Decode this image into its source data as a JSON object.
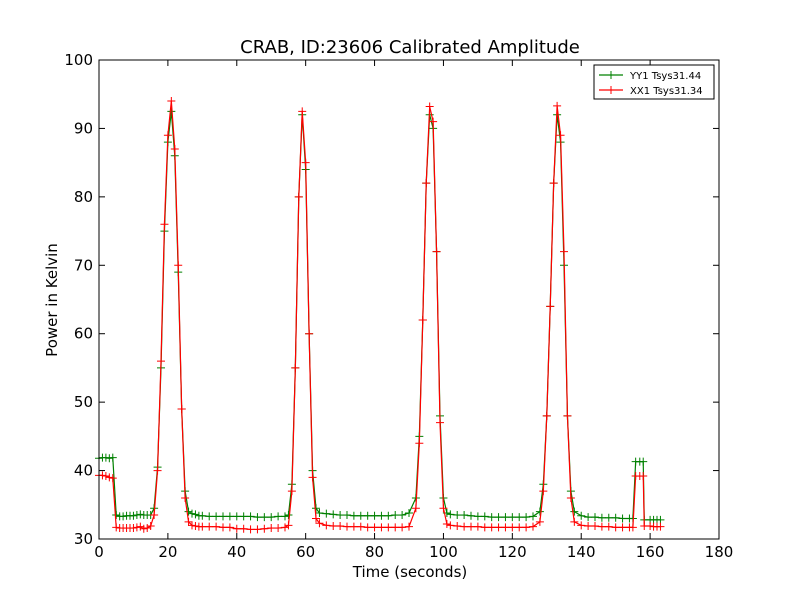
{
  "chart_data": {
    "type": "line",
    "title": "CRAB, ID:23606 Calibrated Amplitude",
    "xlabel": "Time (seconds)",
    "ylabel": "Power in Kelvin",
    "xlim": [
      0,
      180
    ],
    "ylim": [
      30,
      100
    ],
    "xticks": [
      0,
      20,
      40,
      60,
      80,
      100,
      120,
      140,
      160,
      180
    ],
    "yticks": [
      30,
      40,
      50,
      60,
      70,
      80,
      90,
      100
    ],
    "grid": false,
    "legend_position": "top-right",
    "series": [
      {
        "name": "YY1 Tsys31.44",
        "color": "#008000",
        "marker": "+",
        "points": [
          [
            0,
            41.8
          ],
          [
            1,
            41.9
          ],
          [
            2,
            41.9
          ],
          [
            3,
            41.8
          ],
          [
            4,
            41.9
          ],
          [
            5,
            33.5
          ],
          [
            6,
            33.3
          ],
          [
            7,
            33.3
          ],
          [
            8,
            33.4
          ],
          [
            9,
            33.4
          ],
          [
            10,
            33.4
          ],
          [
            11,
            33.5
          ],
          [
            12,
            33.6
          ],
          [
            13,
            33.5
          ],
          [
            14,
            33.5
          ],
          [
            15,
            33.5
          ],
          [
            16,
            34.5
          ],
          [
            17,
            40.5
          ],
          [
            18,
            55
          ],
          [
            19,
            75
          ],
          [
            20,
            88
          ],
          [
            21,
            92.5
          ],
          [
            22,
            86
          ],
          [
            23,
            69
          ],
          [
            24,
            49
          ],
          [
            25,
            37
          ],
          [
            26,
            34
          ],
          [
            27,
            33.7
          ],
          [
            28,
            33.6
          ],
          [
            29,
            33.4
          ],
          [
            30,
            33.4
          ],
          [
            32,
            33.3
          ],
          [
            34,
            33.3
          ],
          [
            36,
            33.3
          ],
          [
            38,
            33.3
          ],
          [
            40,
            33.3
          ],
          [
            42,
            33.3
          ],
          [
            44,
            33.3
          ],
          [
            46,
            33.2
          ],
          [
            48,
            33.2
          ],
          [
            50,
            33.2
          ],
          [
            52,
            33.3
          ],
          [
            54,
            33.3
          ],
          [
            55,
            33.5
          ],
          [
            56,
            38
          ],
          [
            57,
            55
          ],
          [
            58,
            80
          ],
          [
            59,
            92
          ],
          [
            60,
            84
          ],
          [
            61,
            60
          ],
          [
            62,
            40
          ],
          [
            63,
            34.5
          ],
          [
            64,
            33.8
          ],
          [
            66,
            33.7
          ],
          [
            68,
            33.6
          ],
          [
            70,
            33.5
          ],
          [
            72,
            33.5
          ],
          [
            74,
            33.4
          ],
          [
            76,
            33.4
          ],
          [
            78,
            33.4
          ],
          [
            80,
            33.4
          ],
          [
            82,
            33.4
          ],
          [
            84,
            33.4
          ],
          [
            86,
            33.5
          ],
          [
            88,
            33.5
          ],
          [
            90,
            33.8
          ],
          [
            92,
            36
          ],
          [
            93,
            45
          ],
          [
            94,
            62
          ],
          [
            95,
            82
          ],
          [
            96,
            92
          ],
          [
            97,
            90
          ],
          [
            98,
            72
          ],
          [
            99,
            48
          ],
          [
            100,
            36
          ],
          [
            101,
            33.8
          ],
          [
            102,
            33.6
          ],
          [
            104,
            33.5
          ],
          [
            106,
            33.5
          ],
          [
            108,
            33.4
          ],
          [
            110,
            33.3
          ],
          [
            112,
            33.3
          ],
          [
            114,
            33.2
          ],
          [
            116,
            33.2
          ],
          [
            118,
            33.2
          ],
          [
            120,
            33.2
          ],
          [
            122,
            33.2
          ],
          [
            124,
            33.2
          ],
          [
            126,
            33.3
          ],
          [
            128,
            34
          ],
          [
            129,
            38
          ],
          [
            130,
            48
          ],
          [
            131,
            64
          ],
          [
            132,
            82
          ],
          [
            133,
            92
          ],
          [
            134,
            88
          ],
          [
            135,
            70
          ],
          [
            136,
            48
          ],
          [
            137,
            37
          ],
          [
            138,
            34
          ],
          [
            140,
            33.4
          ],
          [
            142,
            33.2
          ],
          [
            144,
            33.2
          ],
          [
            146,
            33.1
          ],
          [
            148,
            33.1
          ],
          [
            150,
            33.1
          ],
          [
            152,
            33.0
          ],
          [
            154,
            33.0
          ],
          [
            155,
            33.0
          ],
          [
            155.8,
            41.3
          ],
          [
            157,
            41.3
          ],
          [
            158,
            41.3
          ],
          [
            158.3,
            32.8
          ],
          [
            160,
            32.8
          ],
          [
            161,
            32.8
          ],
          [
            162,
            32.8
          ],
          [
            163,
            32.8
          ]
        ]
      },
      {
        "name": "XX1 Tsys31.34",
        "color": "#ff0000",
        "marker": "+",
        "points": [
          [
            0,
            39.3
          ],
          [
            1,
            39.3
          ],
          [
            2,
            39.2
          ],
          [
            3,
            39.0
          ],
          [
            4,
            38.9
          ],
          [
            5,
            31.7
          ],
          [
            6,
            31.6
          ],
          [
            7,
            31.6
          ],
          [
            8,
            31.6
          ],
          [
            9,
            31.6
          ],
          [
            10,
            31.6
          ],
          [
            11,
            31.7
          ],
          [
            12,
            31.8
          ],
          [
            13,
            31.5
          ],
          [
            14,
            31.6
          ],
          [
            15,
            31.9
          ],
          [
            16,
            33.5
          ],
          [
            17,
            40
          ],
          [
            18,
            56
          ],
          [
            19,
            76
          ],
          [
            20,
            89
          ],
          [
            21,
            94
          ],
          [
            22,
            87
          ],
          [
            23,
            70
          ],
          [
            24,
            49
          ],
          [
            25,
            36
          ],
          [
            26,
            32.5
          ],
          [
            27,
            32
          ],
          [
            28,
            31.9
          ],
          [
            29,
            31.8
          ],
          [
            30,
            31.8
          ],
          [
            32,
            31.8
          ],
          [
            34,
            31.8
          ],
          [
            36,
            31.7
          ],
          [
            38,
            31.7
          ],
          [
            40,
            31.5
          ],
          [
            42,
            31.5
          ],
          [
            44,
            31.4
          ],
          [
            46,
            31.4
          ],
          [
            48,
            31.5
          ],
          [
            50,
            31.6
          ],
          [
            52,
            31.6
          ],
          [
            54,
            31.7
          ],
          [
            55,
            32
          ],
          [
            56,
            37
          ],
          [
            57,
            55
          ],
          [
            58,
            80
          ],
          [
            59,
            92.5
          ],
          [
            60,
            85
          ],
          [
            61,
            60
          ],
          [
            62,
            39
          ],
          [
            63,
            33
          ],
          [
            64,
            32.3
          ],
          [
            66,
            32
          ],
          [
            68,
            31.9
          ],
          [
            70,
            31.9
          ],
          [
            72,
            31.8
          ],
          [
            74,
            31.8
          ],
          [
            76,
            31.8
          ],
          [
            78,
            31.7
          ],
          [
            80,
            31.7
          ],
          [
            82,
            31.7
          ],
          [
            84,
            31.7
          ],
          [
            86,
            31.7
          ],
          [
            88,
            31.7
          ],
          [
            90,
            31.8
          ],
          [
            92,
            34.5
          ],
          [
            93,
            44
          ],
          [
            94,
            62
          ],
          [
            95,
            82
          ],
          [
            96,
            93.2
          ],
          [
            97,
            91
          ],
          [
            98,
            72
          ],
          [
            99,
            47
          ],
          [
            100,
            34.5
          ],
          [
            101,
            32.2
          ],
          [
            102,
            32
          ],
          [
            104,
            31.9
          ],
          [
            106,
            31.8
          ],
          [
            108,
            31.8
          ],
          [
            110,
            31.8
          ],
          [
            112,
            31.7
          ],
          [
            114,
            31.7
          ],
          [
            116,
            31.7
          ],
          [
            118,
            31.7
          ],
          [
            120,
            31.7
          ],
          [
            122,
            31.7
          ],
          [
            124,
            31.7
          ],
          [
            126,
            31.8
          ],
          [
            128,
            32.5
          ],
          [
            129,
            37
          ],
          [
            130,
            48
          ],
          [
            131,
            64
          ],
          [
            132,
            82
          ],
          [
            133,
            93.3
          ],
          [
            134,
            89
          ],
          [
            135,
            72
          ],
          [
            136,
            48
          ],
          [
            137,
            36
          ],
          [
            138,
            32.5
          ],
          [
            140,
            32
          ],
          [
            142,
            31.9
          ],
          [
            144,
            31.9
          ],
          [
            146,
            31.8
          ],
          [
            148,
            31.8
          ],
          [
            150,
            31.7
          ],
          [
            152,
            31.7
          ],
          [
            154,
            31.7
          ],
          [
            155,
            31.7
          ],
          [
            155.8,
            39.2
          ],
          [
            157,
            39.2
          ],
          [
            158,
            39.2
          ],
          [
            158.3,
            31.9
          ],
          [
            160,
            31.9
          ],
          [
            161,
            31.8
          ],
          [
            162,
            31.8
          ],
          [
            163,
            31.8
          ]
        ]
      }
    ]
  }
}
